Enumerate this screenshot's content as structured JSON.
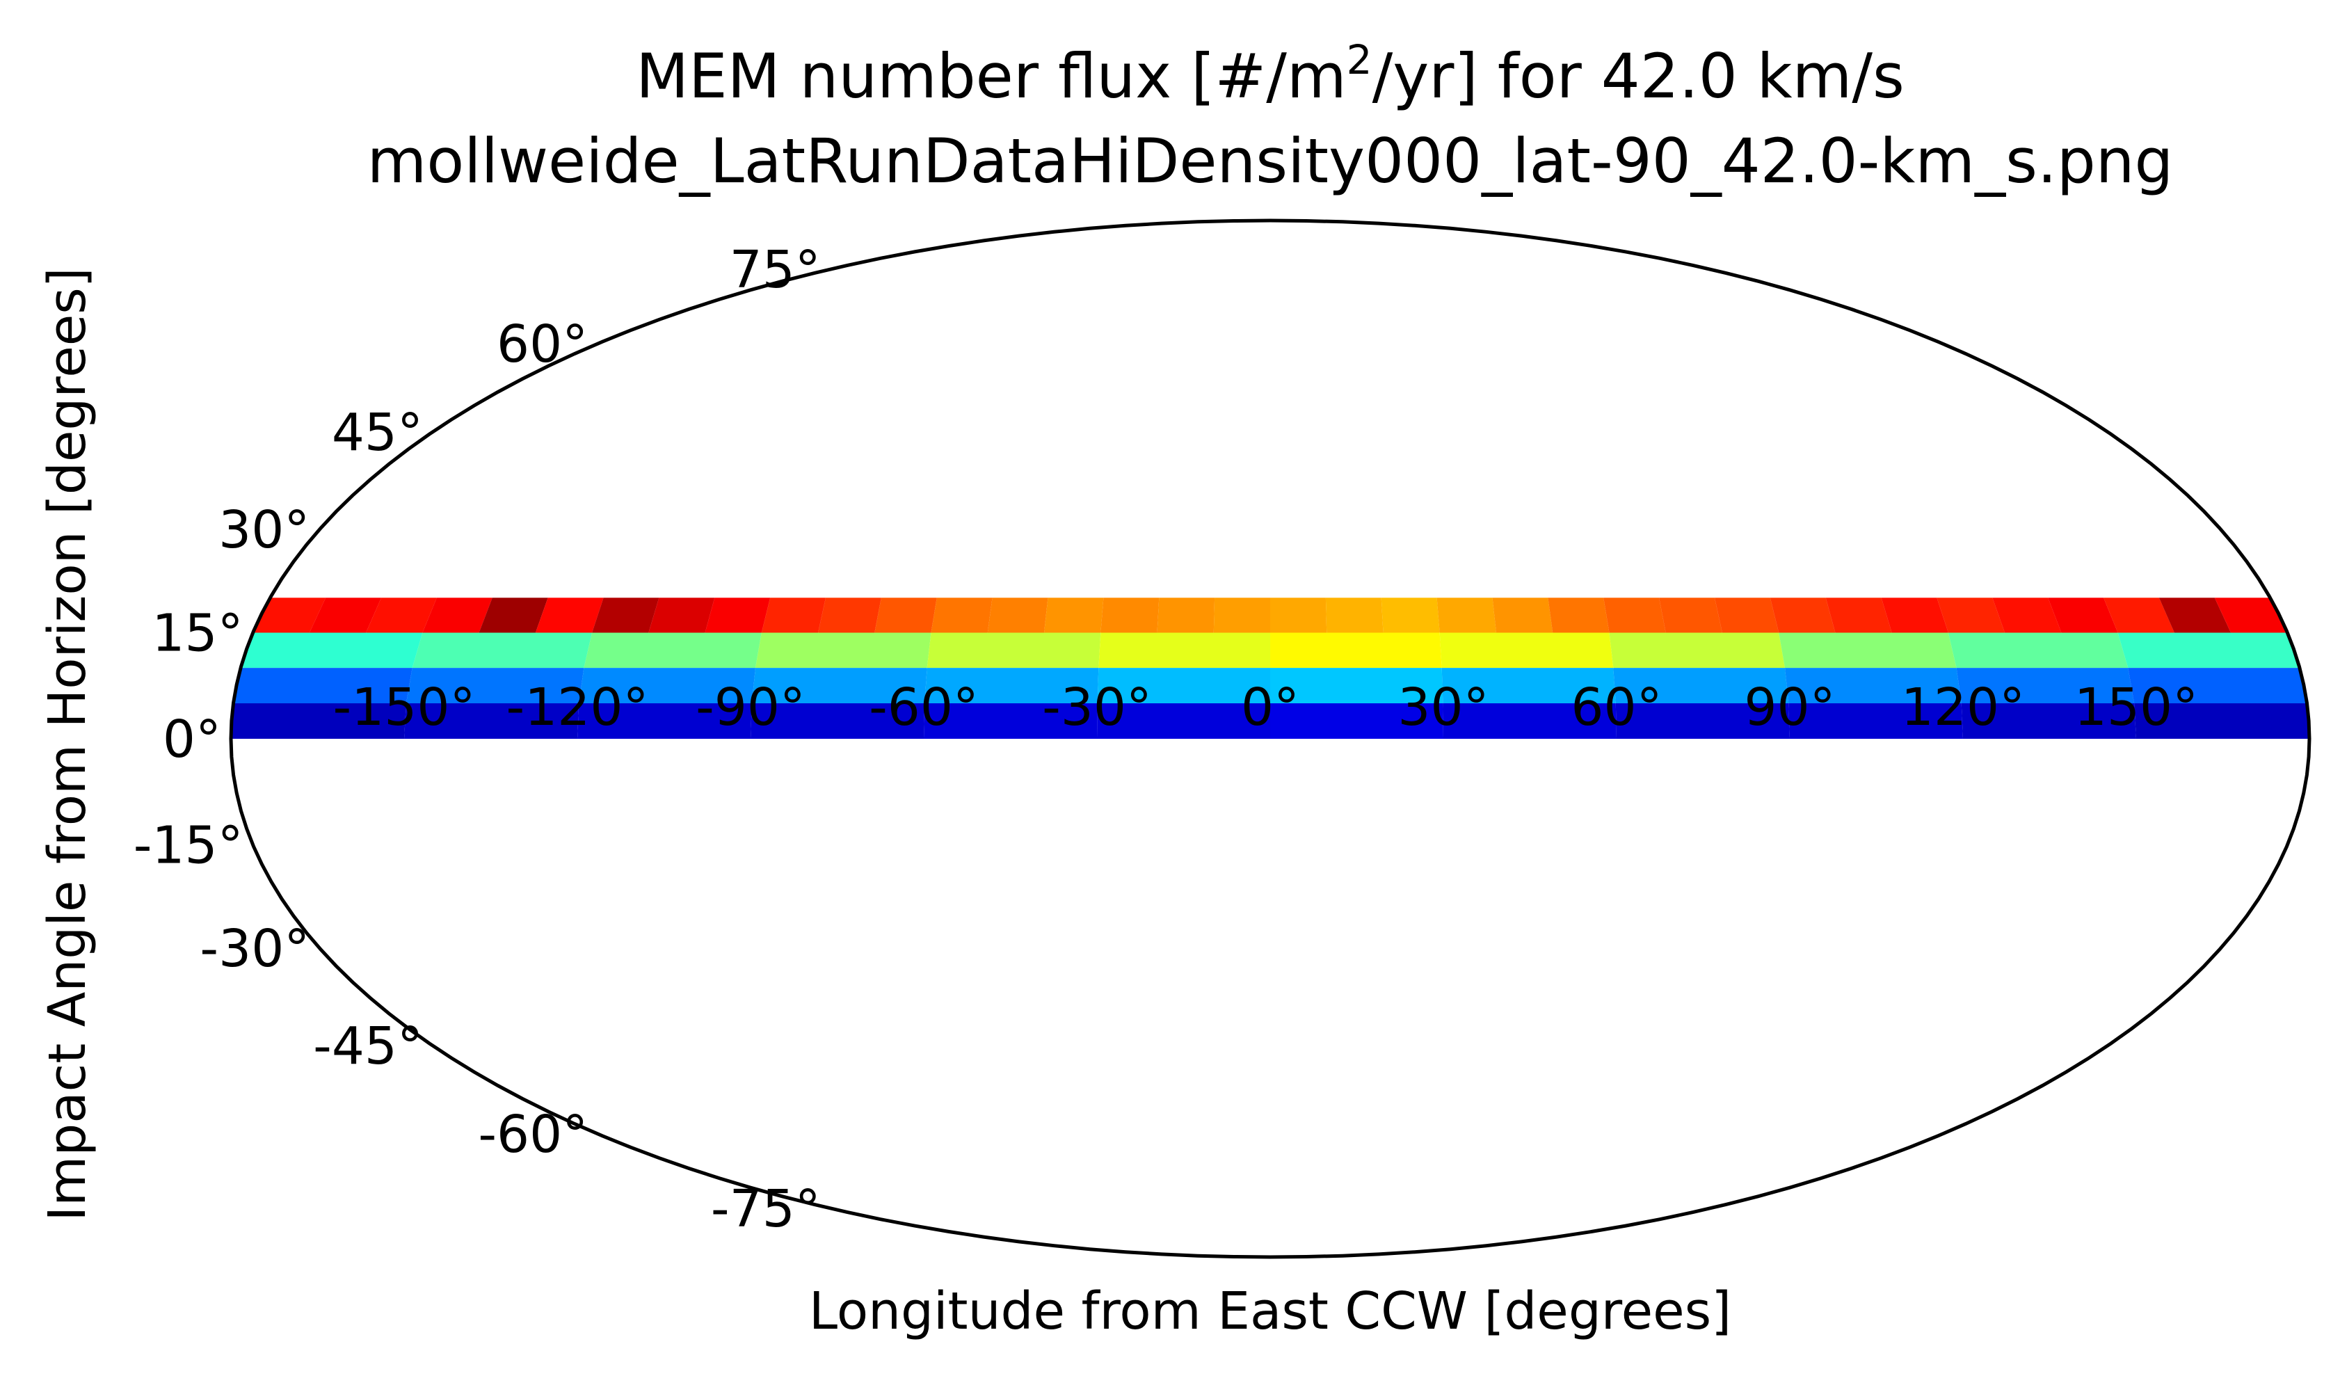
{
  "chart_data": {
    "type": "heatmap",
    "projection": "mollweide",
    "title_prefix": "MEM number flux [#/m",
    "title_sup": "2",
    "title_suffix": "/yr] for 42.0 km/s",
    "subtitle": "mollweide_LatRunDataHiDensity000_lat-90_42.0-km_s.png",
    "xlabel": "Longitude from East CCW [degrees]",
    "ylabel": "Impact Angle from Horizon [degrees]",
    "xlim": [
      -180,
      180
    ],
    "ylim": [
      -90,
      90
    ],
    "x_ticks": [
      -150,
      -120,
      -90,
      -60,
      -30,
      0,
      30,
      60,
      90,
      120,
      150
    ],
    "x_tick_labels": [
      "-150°",
      "-120°",
      "-90°",
      "-60°",
      "-30°",
      "0°",
      "30°",
      "60°",
      "90°",
      "120°",
      "150°"
    ],
    "y_ticks": [
      75,
      60,
      45,
      30,
      15,
      0,
      -15,
      -30,
      -45,
      -60,
      -75
    ],
    "y_tick_labels": [
      "75°",
      "60°",
      "45°",
      "30°",
      "15°",
      "0°",
      "-15°",
      "-30°",
      "-45°",
      "-60°",
      "-75°"
    ],
    "grid": false,
    "colormap": "jet",
    "value_range": [
      0,
      1
    ],
    "rows": [
      {
        "lat_range": [
          15,
          20
        ],
        "lon_edges": [
          -180,
          -170,
          -160,
          -150,
          -140,
          -130,
          -120,
          -110,
          -100,
          -90,
          -80,
          -70,
          -60,
          -50,
          -40,
          -30,
          -20,
          -10,
          0,
          10,
          20,
          30,
          40,
          50,
          60,
          70,
          80,
          90,
          100,
          110,
          120,
          130,
          140,
          150,
          160,
          170,
          180
        ],
        "values": [
          0.86,
          0.88,
          0.86,
          0.88,
          0.97,
          0.87,
          0.95,
          0.91,
          0.88,
          0.84,
          0.82,
          0.79,
          0.76,
          0.75,
          0.73,
          0.74,
          0.73,
          0.72,
          0.71,
          0.7,
          0.69,
          0.71,
          0.73,
          0.76,
          0.78,
          0.79,
          0.8,
          0.82,
          0.84,
          0.86,
          0.84,
          0.86,
          0.88,
          0.85,
          0.95,
          0.88
        ]
      },
      {
        "lat_range": [
          10,
          15
        ],
        "lon_edges": [
          -180,
          -150,
          -120,
          -90,
          -60,
          -30,
          0,
          30,
          60,
          90,
          120,
          150,
          180
        ],
        "values": [
          0.42,
          0.45,
          0.49,
          0.53,
          0.57,
          0.6,
          0.63,
          0.61,
          0.57,
          0.51,
          0.47,
          0.43
        ]
      },
      {
        "lat_range": [
          5,
          10
        ],
        "lon_edges": [
          -180,
          -150,
          -120,
          -90,
          -60,
          -30,
          0,
          30,
          60,
          90,
          120,
          150,
          180
        ],
        "values": [
          0.22,
          0.24,
          0.26,
          0.28,
          0.29,
          0.31,
          0.32,
          0.3,
          0.28,
          0.26,
          0.24,
          0.22
        ]
      },
      {
        "lat_range": [
          0,
          5
        ],
        "lon_edges": [
          -180,
          -150,
          -120,
          -90,
          -60,
          -30,
          0,
          30,
          60,
          90,
          120,
          150,
          180
        ],
        "values": [
          0.06,
          0.07,
          0.08,
          0.08,
          0.09,
          0.09,
          0.1,
          0.09,
          0.08,
          0.08,
          0.07,
          0.06
        ]
      }
    ]
  }
}
